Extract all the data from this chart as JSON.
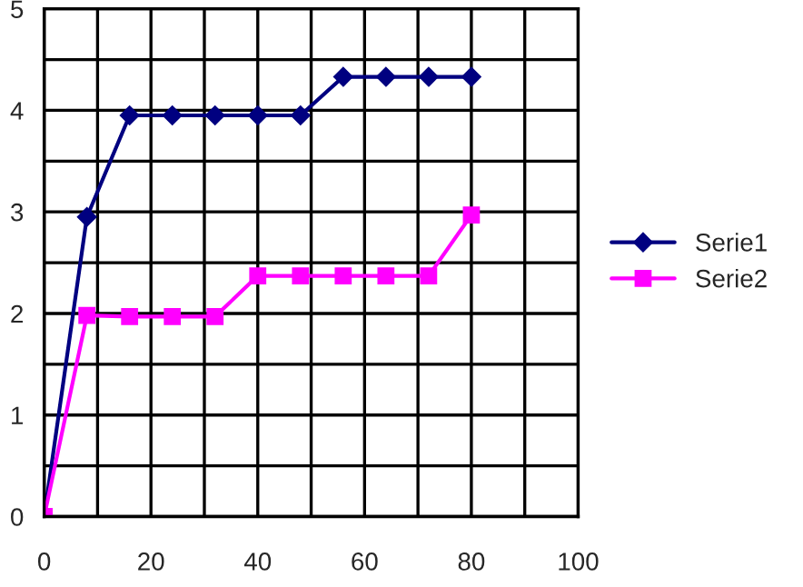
{
  "chart_data": {
    "type": "line",
    "x": [
      0,
      8,
      16,
      24,
      32,
      40,
      48,
      56,
      64,
      72,
      80
    ],
    "series": [
      {
        "name": "Serie1",
        "color": "#000080",
        "marker": "diamond",
        "values": [
          0,
          2.95,
          3.95,
          3.95,
          3.95,
          3.95,
          3.95,
          4.33,
          4.33,
          4.33,
          4.33
        ]
      },
      {
        "name": "Serie2",
        "color": "#ff00ff",
        "marker": "square",
        "values": [
          0,
          1.98,
          1.97,
          1.97,
          1.97,
          2.37,
          2.37,
          2.37,
          2.37,
          2.37,
          2.97
        ]
      }
    ],
    "xlim": [
      0,
      100
    ],
    "xticks": [
      0,
      {
        "value": 10,
        "label": null
      },
      20,
      {
        "value": 30,
        "label": null
      },
      40,
      {
        "value": 50,
        "label": null
      },
      60,
      {
        "value": 70,
        "label": null
      },
      80,
      {
        "value": 90,
        "label": null
      },
      100
    ],
    "ylim": [
      0,
      5
    ],
    "yticks": [
      0,
      {
        "value": 0.5,
        "label": null
      },
      1,
      {
        "value": 1.5,
        "label": null
      },
      2,
      {
        "value": 2.5,
        "label": null
      },
      3,
      {
        "value": 3.5,
        "label": null
      },
      4,
      {
        "value": 4.5,
        "label": null
      },
      5
    ],
    "grid": true,
    "legend": "right",
    "line_style": "solid"
  }
}
